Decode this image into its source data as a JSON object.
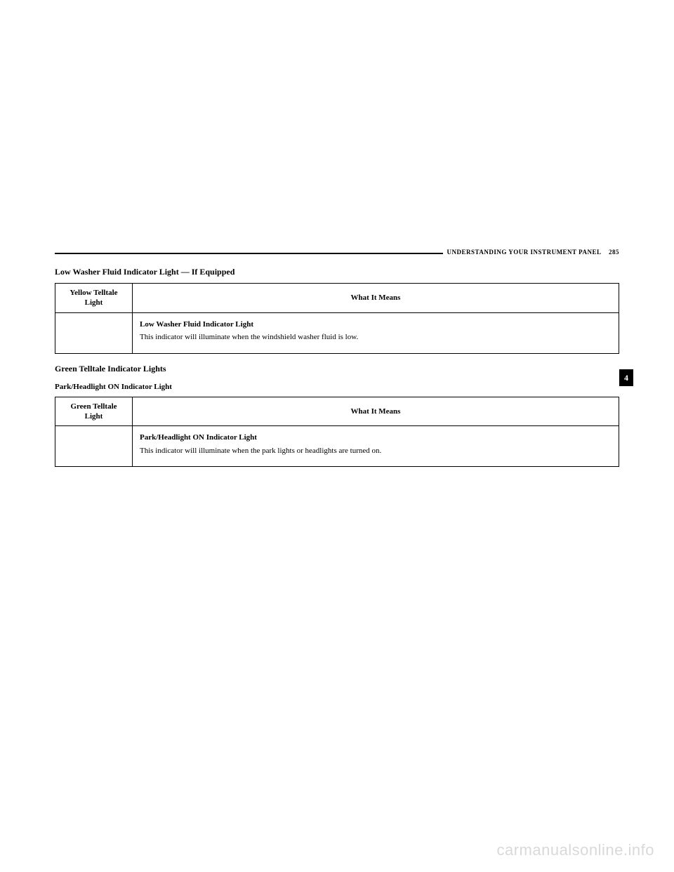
{
  "header": {
    "section": "UNDERSTANDING YOUR INSTRUMENT PANEL",
    "page": "285"
  },
  "sideTab": "4",
  "section1": {
    "heading": "Low Washer Fluid Indicator Light — If Equipped",
    "col1": "Yellow Telltale Light",
    "col2": "What It Means",
    "descTitle": "Low Washer Fluid Indicator Light",
    "descBody": "This indicator will illuminate when the windshield washer fluid is low."
  },
  "section2": {
    "heading": "Green Telltale Indicator Lights",
    "subheading": "Park/Headlight ON Indicator Light",
    "col1": "Green Telltale Light",
    "col2": "What It Means",
    "descTitle": "Park/Headlight ON Indicator Light",
    "descBody": "This indicator will illuminate when the park lights or headlights are turned on."
  },
  "watermark": "carmanualsonline.info"
}
